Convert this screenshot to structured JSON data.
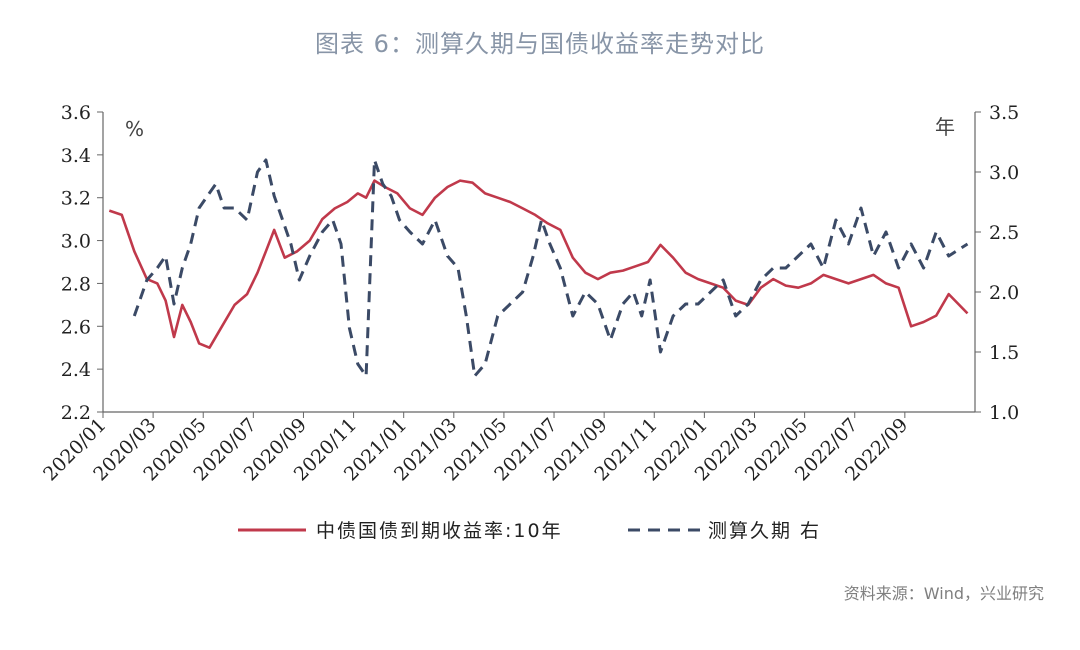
{
  "title": "图表 6：测算久期与国债收益率走势对比",
  "source": "资料来源：Wind，兴业研究",
  "colors": {
    "yield": "#c0394b",
    "duration": "#3b4a66"
  },
  "chart_data": {
    "type": "line",
    "left_unit": "%",
    "right_unit": "年",
    "y_left": {
      "min": 2.2,
      "max": 3.6,
      "ticks": [
        "2.2",
        "2.4",
        "2.6",
        "2.8",
        "3.0",
        "3.2",
        "3.4",
        "3.6"
      ]
    },
    "y_right": {
      "min": 1.0,
      "max": 3.5,
      "ticks": [
        "1.0",
        "1.5",
        "2.0",
        "2.5",
        "3.0",
        "3.5"
      ]
    },
    "x_ticks": [
      "2020/01",
      "2020/03",
      "2020/05",
      "2020/07",
      "2020/09",
      "2020/11",
      "2021/01",
      "2021/03",
      "2021/05",
      "2021/07",
      "2021/09",
      "2021/11",
      "2022/01",
      "2022/03",
      "2022/05",
      "2022/07",
      "2022/09"
    ],
    "legend": "bottom",
    "series": [
      {
        "name": "中债国债到期收益率:10年",
        "axis": "left",
        "style": "solid",
        "x": [
          "2020/01",
          "2020/01",
          "2020/02",
          "2020/02",
          "2020/03",
          "2020/03",
          "2020/03",
          "2020/04",
          "2020/04",
          "2020/04",
          "2020/05",
          "2020/05",
          "2020/06",
          "2020/06",
          "2020/07",
          "2020/07",
          "2020/07",
          "2020/08",
          "2020/08",
          "2020/09",
          "2020/09",
          "2020/10",
          "2020/10",
          "2020/11",
          "2020/11",
          "2020/11",
          "2020/12",
          "2020/12",
          "2021/01",
          "2021/01",
          "2021/02",
          "2021/02",
          "2021/03",
          "2021/03",
          "2021/04",
          "2021/04",
          "2021/05",
          "2021/05",
          "2021/06",
          "2021/06",
          "2021/07",
          "2021/07",
          "2021/08",
          "2021/08",
          "2021/09",
          "2021/09",
          "2021/10",
          "2021/10",
          "2021/11",
          "2021/11",
          "2021/12",
          "2021/12",
          "2022/01",
          "2022/01",
          "2022/02",
          "2022/02",
          "2022/03",
          "2022/03",
          "2022/04",
          "2022/04",
          "2022/05",
          "2022/05",
          "2022/06",
          "2022/06",
          "2022/07",
          "2022/07",
          "2022/08",
          "2022/08",
          "2022/09",
          "2022/09",
          "2022/10",
          "2022/10",
          "2022/11"
        ],
        "y": [
          3.14,
          3.12,
          2.95,
          2.82,
          2.8,
          2.72,
          2.55,
          2.7,
          2.62,
          2.52,
          2.5,
          2.6,
          2.7,
          2.75,
          2.85,
          2.95,
          3.05,
          2.92,
          2.95,
          3.0,
          3.1,
          3.15,
          3.18,
          3.22,
          3.2,
          3.28,
          3.25,
          3.22,
          3.15,
          3.12,
          3.2,
          3.25,
          3.28,
          3.27,
          3.22,
          3.2,
          3.18,
          3.15,
          3.12,
          3.08,
          3.05,
          2.92,
          2.85,
          2.82,
          2.85,
          2.86,
          2.88,
          2.9,
          2.98,
          2.92,
          2.85,
          2.82,
          2.8,
          2.78,
          2.72,
          2.7,
          2.78,
          2.82,
          2.79,
          2.78,
          2.8,
          2.84,
          2.82,
          2.8,
          2.82,
          2.84,
          2.8,
          2.78,
          2.6,
          2.62,
          2.65,
          2.75,
          2.66
        ]
      },
      {
        "name": "测算久期 右",
        "axis": "right",
        "style": "dashed",
        "x": [
          "2020/02",
          "2020/02",
          "2020/03",
          "2020/03",
          "2020/03",
          "2020/04",
          "2020/04",
          "2020/04",
          "2020/05",
          "2020/05",
          "2020/05",
          "2020/06",
          "2020/06",
          "2020/07",
          "2020/07",
          "2020/07",
          "2020/08",
          "2020/08",
          "2020/08",
          "2020/09",
          "2020/09",
          "2020/10",
          "2020/10",
          "2020/10",
          "2020/11",
          "2020/11",
          "2020/11",
          "2020/12",
          "2020/12",
          "2020/12",
          "2021/01",
          "2021/01",
          "2021/02",
          "2021/02",
          "2021/03",
          "2021/03",
          "2021/03",
          "2021/04",
          "2021/04",
          "2021/05",
          "2021/05",
          "2021/06",
          "2021/06",
          "2021/06",
          "2021/07",
          "2021/07",
          "2021/08",
          "2021/08",
          "2021/09",
          "2021/09",
          "2021/10",
          "2021/10",
          "2021/10",
          "2021/11",
          "2021/11",
          "2021/12",
          "2021/12",
          "2022/01",
          "2022/01",
          "2022/02",
          "2022/02",
          "2022/03",
          "2022/03",
          "2022/04",
          "2022/04",
          "2022/05",
          "2022/05",
          "2022/06",
          "2022/06",
          "2022/07",
          "2022/07",
          "2022/08",
          "2022/08",
          "2022/09",
          "2022/09",
          "2022/10",
          "2022/10",
          "2022/11"
        ],
        "y": [
          1.8,
          2.1,
          2.2,
          2.3,
          1.9,
          2.2,
          2.4,
          2.7,
          2.8,
          2.9,
          2.7,
          2.7,
          2.6,
          3.0,
          3.1,
          2.8,
          2.6,
          2.4,
          2.1,
          2.3,
          2.5,
          2.6,
          2.4,
          1.7,
          1.4,
          1.3,
          3.1,
          2.9,
          2.8,
          2.6,
          2.5,
          2.4,
          2.6,
          2.3,
          2.2,
          1.8,
          1.3,
          1.4,
          1.8,
          1.9,
          2.0,
          2.3,
          2.6,
          2.4,
          2.2,
          1.8,
          2.0,
          1.9,
          1.6,
          1.9,
          2.0,
          1.8,
          2.1,
          1.5,
          1.8,
          1.9,
          1.9,
          2.0,
          2.1,
          1.8,
          1.9,
          2.1,
          2.2,
          2.2,
          2.3,
          2.4,
          2.2,
          2.6,
          2.4,
          2.7,
          2.3,
          2.5,
          2.2,
          2.4,
          2.2,
          2.5,
          2.3,
          2.4
        ]
      }
    ]
  }
}
